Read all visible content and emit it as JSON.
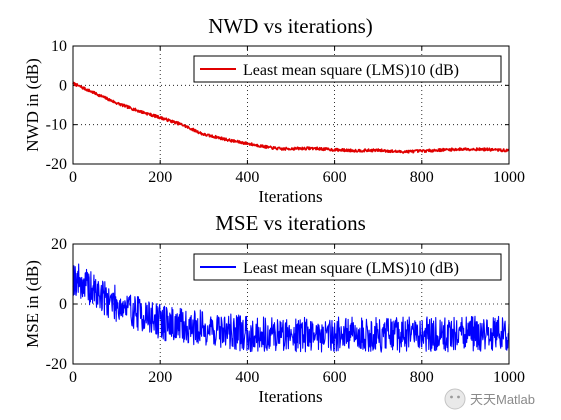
{
  "chart_data": [
    {
      "type": "line",
      "title": "NWD vs iterations)",
      "xlabel": "Iterations",
      "ylabel": "NWD in (dB)",
      "xlim": [
        0,
        1000
      ],
      "ylim": [
        -20,
        10
      ],
      "xticks": [
        0,
        200,
        400,
        600,
        800,
        1000
      ],
      "yticks": [
        10,
        0,
        -10,
        -20
      ],
      "grid": true,
      "legend": "top-right",
      "series": [
        {
          "name": "Least mean square (LMS)10 (dB)",
          "color": "#e00000",
          "noise": 0.35,
          "x": [
            0,
            20,
            50,
            100,
            150,
            200,
            250,
            280,
            300,
            330,
            360,
            400,
            450,
            480,
            500,
            550,
            600,
            650,
            700,
            750,
            800,
            850,
            900,
            950,
            1000
          ],
          "y": [
            0.5,
            -0.5,
            -2,
            -4.5,
            -6.5,
            -8.2,
            -10,
            -11.5,
            -12.5,
            -13.2,
            -14,
            -14.8,
            -15.8,
            -16.2,
            -16.1,
            -16,
            -16.4,
            -16.6,
            -16.5,
            -16.9,
            -16.7,
            -16.4,
            -16.2,
            -16.3,
            -16.6
          ]
        }
      ]
    },
    {
      "type": "line",
      "title": "MSE vs iterations",
      "xlabel": "Iterations",
      "ylabel": "MSE in (dB)",
      "xlim": [
        0,
        1000
      ],
      "ylim": [
        -20,
        20
      ],
      "xticks": [
        0,
        200,
        400,
        600,
        800,
        1000
      ],
      "yticks": [
        20,
        0,
        -20
      ],
      "grid": true,
      "legend": "top-right",
      "series": [
        {
          "name": "Least mean square (LMS)10 (dB)",
          "color": "#0000ff",
          "noise": 6,
          "x": [
            0,
            20,
            50,
            100,
            150,
            200,
            250,
            300,
            350,
            400,
            500,
            600,
            700,
            800,
            900,
            1000
          ],
          "y": [
            9,
            7,
            4,
            0,
            -3,
            -6,
            -7.5,
            -8,
            -9,
            -10,
            -10,
            -10,
            -10.5,
            -10,
            -10,
            -10
          ]
        }
      ]
    }
  ],
  "watermark": {
    "text": "天天Matlab"
  }
}
